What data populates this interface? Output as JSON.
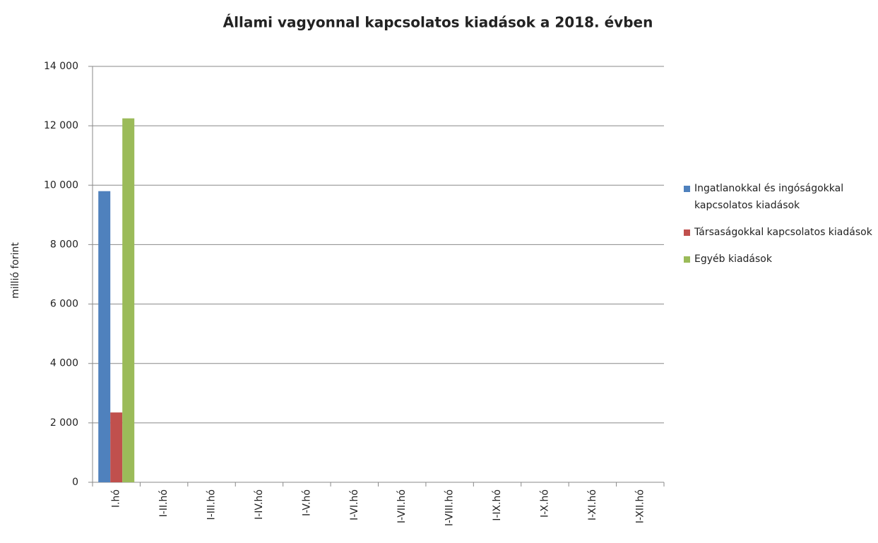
{
  "chart_data": {
    "type": "bar",
    "title": "Állami vagyonnal kapcsolatos kiadások a 2018. évben",
    "y_label": "millió forint",
    "categories": [
      "I.hó",
      "I-II.hó",
      "I-III.hó",
      "I-IV.hó",
      "I-V.hó",
      "I-VI.hó",
      "I-VII.hó",
      "I-VIII.hó",
      "I-IX.hó",
      "I-X.hó",
      "I-XI.hó",
      "I-XII.hó"
    ],
    "series": [
      {
        "name": "Ingatlanokkal és ingóságokkal kapcsolatos kiadások",
        "color": "#4f81bd",
        "values": [
          9800,
          null,
          null,
          null,
          null,
          null,
          null,
          null,
          null,
          null,
          null,
          null
        ]
      },
      {
        "name": "Társaságokkal kapcsolatos kiadások",
        "color": "#c0504d",
        "values": [
          2350,
          null,
          null,
          null,
          null,
          null,
          null,
          null,
          null,
          null,
          null,
          null
        ]
      },
      {
        "name": "Egyéb kiadások",
        "color": "#9bbb59",
        "values": [
          12250,
          null,
          null,
          null,
          null,
          null,
          null,
          null,
          null,
          null,
          null,
          null
        ]
      }
    ],
    "ylim": [
      0,
      14000
    ],
    "yticks": [
      0,
      {
        "value": 2000,
        "label": "2 000"
      },
      {
        "value": 4000,
        "label": "4 000"
      },
      {
        "value": 6000,
        "label": "6 000"
      },
      {
        "value": 8000,
        "label": "8 000"
      },
      {
        "value": 10000,
        "label": "10 000"
      },
      {
        "value": 12000,
        "label": "12 000"
      },
      {
        "value": 14000,
        "label": "14 000"
      }
    ],
    "grid": true,
    "legend": "right"
  }
}
